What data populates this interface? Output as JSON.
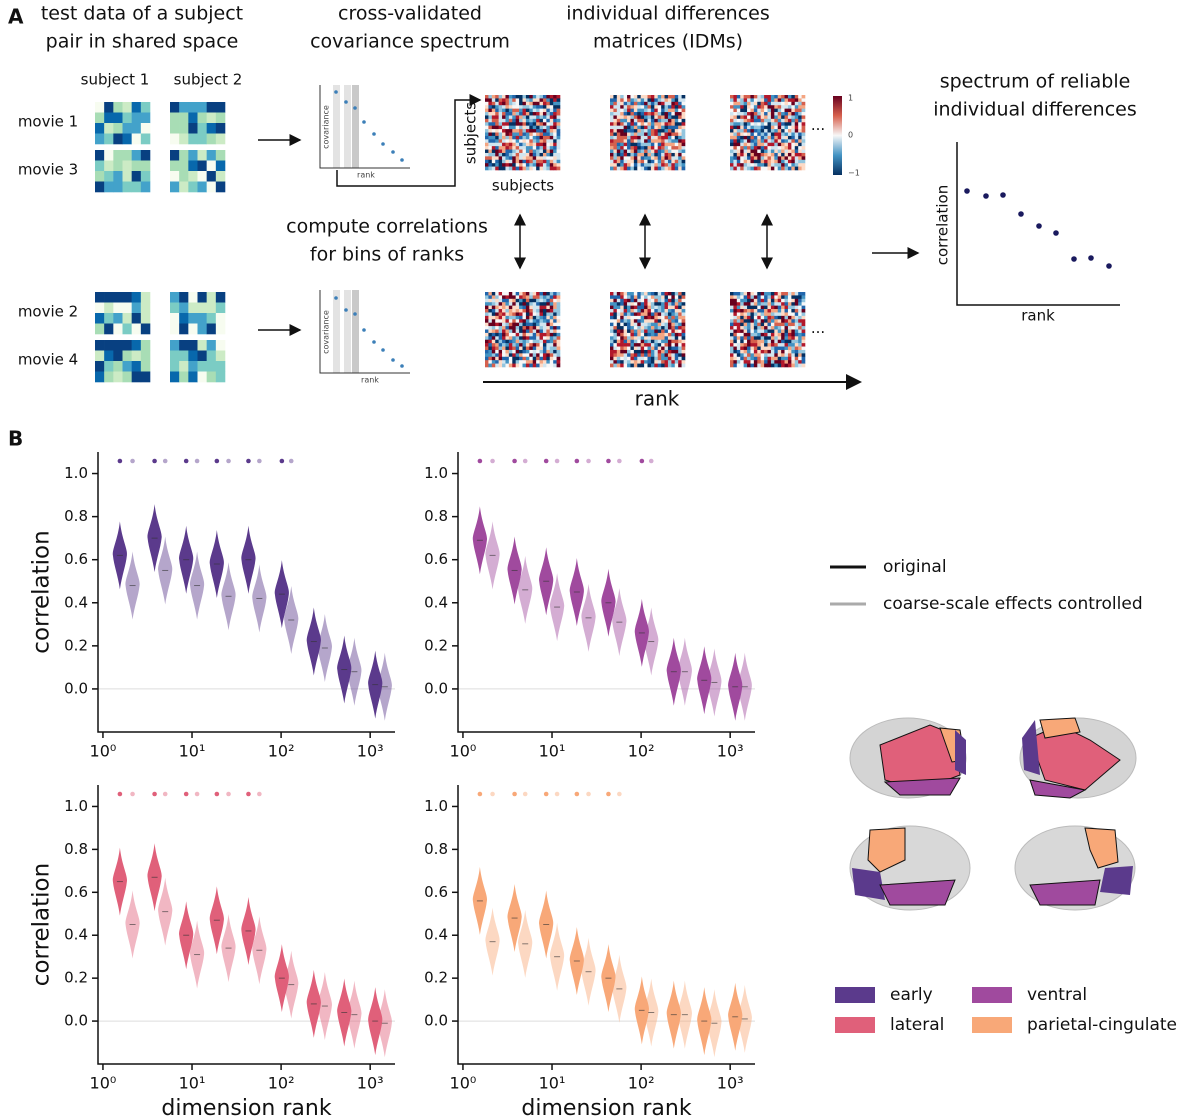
{
  "panel_a": {
    "label": "A",
    "col1_title": [
      "test data of a subject",
      "pair in shared space"
    ],
    "subjects": [
      "subject 1",
      "subject 2"
    ],
    "movies": [
      "movie 1",
      "movie 3",
      "movie 2",
      "movie 4"
    ],
    "col2_title": [
      "cross-validated",
      "covariance spectrum"
    ],
    "mini_axis": {
      "y": "covariance",
      "x": "rank"
    },
    "col3_title": [
      "individual differences",
      "matrices (IDMs)"
    ],
    "idm_axis": "subjects",
    "ellipsis": "···",
    "colorbar_ticks": [
      "1",
      "0",
      "−1"
    ],
    "compute": [
      "compute correlations",
      "for bins of ranks"
    ],
    "rank_arrow": "rank",
    "col4_title": [
      "spectrum of reliable",
      "individual differences"
    ],
    "spectrum_axis": {
      "y": "correlation",
      "x": "rank"
    }
  },
  "panel_b_label": "B",
  "legend": {
    "lines": [
      {
        "name": "original",
        "color": "#111111"
      },
      {
        "name": "coarse-scale effects controlled",
        "color": "#aaaaaa"
      }
    ],
    "regions": [
      {
        "name": "early",
        "color": "#5b3a8c"
      },
      {
        "name": "ventral",
        "color": "#a04a9e"
      },
      {
        "name": "lateral",
        "color": "#e0607a"
      },
      {
        "name": "parietal-cingulate",
        "color": "#f8a878"
      }
    ]
  },
  "chart_data": [
    {
      "type": "violin",
      "ylabel": "correlation",
      "xscale": "log",
      "xlim": [
        0.88,
        1900
      ],
      "ylim": [
        -0.2,
        1.1
      ],
      "xticks": [
        {
          "value": 1,
          "label": "10⁰"
        },
        {
          "value": 10,
          "label": "10¹"
        },
        {
          "value": 100,
          "label": "10²"
        },
        {
          "value": 1000,
          "label": "10³"
        }
      ],
      "yticks": [
        {
          "value": 0,
          "label": "0.0"
        },
        0.2,
        0.4,
        0.6,
        0.8,
        {
          "value": 1,
          "label": "1.0"
        }
      ],
      "reference_line": 0,
      "color": "#5b3a8c",
      "series": [
        {
          "x": [
            1.55,
            3.8,
            8.6,
            19,
            43,
            102,
            233,
            512,
            1140
          ],
          "values": [
            0.62,
            0.7,
            0.6,
            0.58,
            0.6,
            0.44,
            0.22,
            0.09,
            0.02
          ],
          "significant": [
            true,
            true,
            true,
            true,
            true,
            true,
            false,
            false,
            false
          ],
          "opacity": 1
        },
        {
          "x": [
            2.15,
            5.0,
            11.4,
            25.7,
            57,
            130,
            310,
            665,
            1460
          ],
          "values": [
            0.48,
            0.55,
            0.48,
            0.43,
            0.42,
            0.32,
            0.19,
            0.08,
            0.01
          ],
          "significant": [
            true,
            true,
            true,
            true,
            true,
            true,
            false,
            false,
            false
          ],
          "opacity": 0.45
        }
      ]
    },
    {
      "type": "violin",
      "xscale": "log",
      "xlim": [
        0.88,
        1900
      ],
      "ylim": [
        -0.2,
        1.1
      ],
      "xticks": [
        {
          "value": 1,
          "label": "10⁰"
        },
        {
          "value": 10,
          "label": "10¹"
        },
        {
          "value": 100,
          "label": "10²"
        },
        {
          "value": 1000,
          "label": "10³"
        }
      ],
      "yticks": [
        {
          "value": 0,
          "label": "0.0"
        },
        0.2,
        0.4,
        0.6,
        0.8,
        {
          "value": 1,
          "label": "1.0"
        }
      ],
      "reference_line": 0,
      "color": "#a04a9e",
      "series": [
        {
          "x": [
            1.55,
            3.8,
            8.6,
            19,
            43,
            102,
            233,
            512,
            1140
          ],
          "values": [
            0.69,
            0.55,
            0.5,
            0.45,
            0.4,
            0.26,
            0.08,
            0.04,
            0.01
          ],
          "significant": [
            true,
            true,
            true,
            true,
            true,
            true,
            false,
            false,
            false
          ],
          "opacity": 1
        },
        {
          "x": [
            2.15,
            5.0,
            11.4,
            25.7,
            57,
            130,
            310,
            665,
            1460
          ],
          "values": [
            0.62,
            0.46,
            0.38,
            0.33,
            0.31,
            0.22,
            0.08,
            0.03,
            0.01
          ],
          "significant": [
            true,
            true,
            true,
            true,
            true,
            true,
            false,
            false,
            false
          ],
          "opacity": 0.45
        }
      ]
    },
    {
      "type": "violin",
      "ylabel": "correlation",
      "xlabel": "dimension rank",
      "xscale": "log",
      "xlim": [
        0.88,
        1900
      ],
      "ylim": [
        -0.2,
        1.1
      ],
      "xticks": [
        {
          "value": 1,
          "label": "10⁰"
        },
        {
          "value": 10,
          "label": "10¹"
        },
        {
          "value": 100,
          "label": "10²"
        },
        {
          "value": 1000,
          "label": "10³"
        }
      ],
      "yticks": [
        {
          "value": 0,
          "label": "0.0"
        },
        0.2,
        0.4,
        0.6,
        0.8,
        {
          "value": 1,
          "label": "1.0"
        }
      ],
      "reference_line": 0,
      "color": "#e0607a",
      "series": [
        {
          "x": [
            1.55,
            3.8,
            8.6,
            19,
            43,
            102,
            233,
            512,
            1140
          ],
          "values": [
            0.65,
            0.67,
            0.4,
            0.47,
            0.42,
            0.2,
            0.08,
            0.04,
            0.0
          ],
          "significant": [
            true,
            true,
            true,
            true,
            true,
            false,
            false,
            false,
            false
          ],
          "opacity": 1
        },
        {
          "x": [
            2.15,
            5.0,
            11.4,
            25.7,
            57,
            130,
            310,
            665,
            1460
          ],
          "values": [
            0.45,
            0.51,
            0.31,
            0.34,
            0.33,
            0.17,
            0.07,
            0.03,
            -0.01
          ],
          "significant": [
            true,
            true,
            true,
            true,
            true,
            false,
            false,
            false,
            false
          ],
          "opacity": 0.45
        }
      ]
    },
    {
      "type": "violin",
      "xlabel": "dimension rank",
      "xscale": "log",
      "xlim": [
        0.88,
        1900
      ],
      "ylim": [
        -0.2,
        1.1
      ],
      "xticks": [
        {
          "value": 1,
          "label": "10⁰"
        },
        {
          "value": 10,
          "label": "10¹"
        },
        {
          "value": 100,
          "label": "10²"
        },
        {
          "value": 1000,
          "label": "10³"
        }
      ],
      "yticks": [
        {
          "value": 0,
          "label": "0.0"
        },
        0.2,
        0.4,
        0.6,
        0.8,
        {
          "value": 1,
          "label": "1.0"
        }
      ],
      "reference_line": 0,
      "color": "#f8a878",
      "series": [
        {
          "x": [
            1.55,
            3.8,
            8.6,
            19,
            43,
            102,
            233,
            512,
            1140
          ],
          "values": [
            0.56,
            0.48,
            0.45,
            0.28,
            0.2,
            0.05,
            0.03,
            0.0,
            0.02
          ],
          "significant": [
            true,
            true,
            true,
            true,
            true,
            false,
            false,
            false,
            false
          ],
          "opacity": 1
        },
        {
          "x": [
            2.15,
            5.0,
            11.4,
            25.7,
            57,
            130,
            310,
            665,
            1460
          ],
          "values": [
            0.37,
            0.36,
            0.3,
            0.23,
            0.15,
            0.04,
            0.03,
            -0.01,
            0.01
          ],
          "significant": [
            true,
            true,
            true,
            true,
            true,
            false,
            false,
            false,
            false
          ],
          "opacity": 0.45
        }
      ]
    }
  ]
}
